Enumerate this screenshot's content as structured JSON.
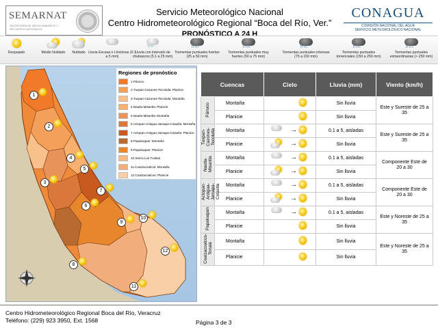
{
  "header": {
    "left_logo": {
      "name": "SEMARNAT",
      "subtitle": "SECRETARÍA DE MEDIO AMBIENTE Y RECURSOS NATURALES"
    },
    "title_line1": "Servicio Meteorológico Nacional",
    "title_line2": "Centro Hidrometeorológico Regional “Boca del Río, Ver.”",
    "title_line3": "PRONÓSTICO A 24 H",
    "right_logo": {
      "name": "CONAGUA",
      "subtitle1": "COMISIÓN NACIONAL DEL AGUA",
      "subtitle2": "SERVICIO METEOROLÓGICO NACIONAL"
    }
  },
  "legend": [
    {
      "label": "Despejado",
      "icon": "sun"
    },
    {
      "label": "Medio Nublado",
      "icon": "sun-cloud"
    },
    {
      "label": "Nublado",
      "icon": "cloud"
    },
    {
      "label": "Lluvia Escasa o Lloviznas (0.1 a 5 mm)",
      "icon": "cloud-drizzle"
    },
    {
      "label": "Lluvia con intervalo de chubascos (5.1 a 25 mm)",
      "icon": "cloud-showers"
    },
    {
      "label": "Tormentas puntuales fuertes (25 a 50 mm)",
      "icon": "storm-strong"
    },
    {
      "label": "Tormentas puntuales muy fuertes (50 a 75 mm)",
      "icon": "storm-very-strong"
    },
    {
      "label": "Tormentas puntuales intensas (75 a 150 mm)",
      "icon": "storm-intense"
    },
    {
      "label": "Tormentas puntuales torrenciales (150 a 250 mm)",
      "icon": "storm-torrential"
    },
    {
      "label": "Tormentas puntuales extraordinarias (> 250 mm)",
      "icon": "storm-extraordinary"
    }
  ],
  "map": {
    "legend_title": "Regiones de pronóstico",
    "regions": [
      {
        "label": "1.Pánuco",
        "color": "#f07a2a"
      },
      {
        "label": "2.Tuxpan-Cazones-Tecolutla: Planicie",
        "color": "#f4a05a"
      },
      {
        "label": "3.Tuxpan-Cazones-Tecolutla: Montaña",
        "color": "#f8c08a"
      },
      {
        "label": "4.Nautla-Misantla: Planicie",
        "color": "#f7b070"
      },
      {
        "label": "5.Nautla-Misantla: Montaña",
        "color": "#e8935a"
      },
      {
        "label": "6.Actopan-Antigua-Jamapa-Cotaxtla: Montaña",
        "color": "#d9783a"
      },
      {
        "label": "7.Actopan-Antigua-Jamapa-Cotaxtla: Planicie",
        "color": "#c85a20"
      },
      {
        "label": "8.Papaloapan: Montaña",
        "color": "#b86a30"
      },
      {
        "label": "9.Papaloapan: Planicie",
        "color": "#e8862e"
      },
      {
        "label": "10.Sierra Los Tuxtlas",
        "color": "#f6b887"
      },
      {
        "label": "11.Coatzacoalcos: Montaña",
        "color": "#f2ad7c"
      },
      {
        "label": "12.Coatzacoalcos: Planicie",
        "color": "#f9cfa8"
      }
    ],
    "markers": [
      "1",
      "2",
      "3",
      "4",
      "5",
      "6",
      "7",
      "8",
      "9",
      "10",
      "11",
      "12"
    ]
  },
  "table": {
    "headers": {
      "basin": "Cuencas",
      "sky": "Cielo",
      "rain": "Lluvia (mm)",
      "wind": "Viento (km/h)"
    },
    "groups": [
      {
        "basin": "Pánuco",
        "wind": "Este y Sureste de 25 a 35",
        "rows": [
          {
            "zone": "Montaña",
            "sky_from": "",
            "sky_to": "sun",
            "rain": "Sin lluvia"
          },
          {
            "zone": "Planicie",
            "sky_from": "",
            "sky_to": "sun",
            "rain": "Sin lluvia"
          }
        ]
      },
      {
        "basin": "Tuxpan-Cazones-Tecolutla",
        "wind": "Este y Sureste de 25 a 35",
        "rows": [
          {
            "zone": "Montaña",
            "sky_from": "cloud-drizzle",
            "sky_to": "sun",
            "rain": "0.1 a 5, aisladas"
          },
          {
            "zone": "Planicie",
            "sky_from": "sun-cloud",
            "sky_to": "sun",
            "rain": "Sin lluvia"
          }
        ]
      },
      {
        "basin": "Nautla-Misantla",
        "wind": "Componente Este de 20 a 30",
        "rows": [
          {
            "zone": "Montaña",
            "sky_from": "cloud-drizzle",
            "sky_to": "sun",
            "rain": "0.1 a 5, aisladas"
          },
          {
            "zone": "Planicie",
            "sky_from": "sun-cloud",
            "sky_to": "sun",
            "rain": "Sin lluvia"
          }
        ]
      },
      {
        "basin": "Actopan-Antigua-Jamapa-Cotaxtla",
        "wind": "Componente Este de 20 a 30",
        "rows": [
          {
            "zone": "Montaña",
            "sky_from": "cloud-drizzle",
            "sky_to": "sun",
            "rain": "0.1 a 5, aisladas"
          },
          {
            "zone": "Planicie",
            "sky_from": "sun-cloud",
            "sky_to": "sun",
            "rain": "Sin lluvia"
          }
        ]
      },
      {
        "basin": "Papaloapan",
        "wind": "Este y Noreste de 25 a 35",
        "rows": [
          {
            "zone": "Montaña",
            "sky_from": "cloud-drizzle",
            "sky_to": "sun",
            "rain": "0.1 a 5, aisladas"
          },
          {
            "zone": "Planicie",
            "sky_from": "",
            "sky_to": "sun",
            "rain": "Sin lluvia"
          }
        ]
      },
      {
        "basin": "Coatzacoalcos-Tonalá",
        "wind": "Este y Noreste de 25 a 35",
        "rows": [
          {
            "zone": "Montaña",
            "sky_from": "",
            "sky_to": "sun",
            "rain": "Sin lluvia"
          },
          {
            "zone": "Planicie",
            "sky_from": "",
            "sky_to": "sun",
            "rain": "Sin lluvia"
          }
        ]
      }
    ]
  },
  "footer": {
    "line1": "Centro Hidrometeorológico Regional Boca del Río, Veracruz",
    "line2": "Teléfono: (229) 923 3950, Ext. 1568",
    "page": "Página 3 de 3"
  }
}
